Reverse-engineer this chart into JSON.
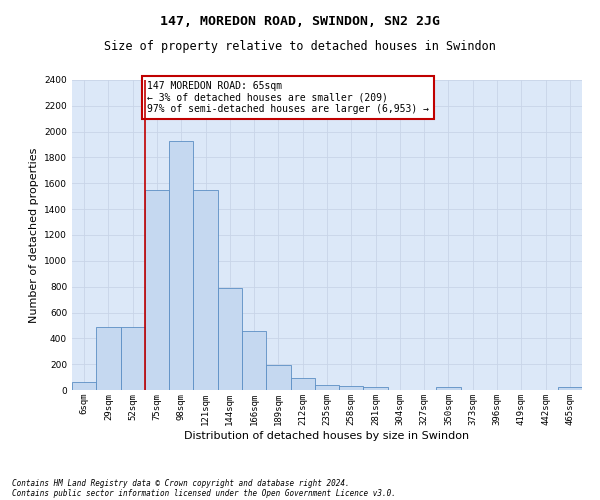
{
  "title": "147, MOREDON ROAD, SWINDON, SN2 2JG",
  "subtitle": "Size of property relative to detached houses in Swindon",
  "xlabel": "Distribution of detached houses by size in Swindon",
  "ylabel": "Number of detached properties",
  "categories": [
    "6sqm",
    "29sqm",
    "52sqm",
    "75sqm",
    "98sqm",
    "121sqm",
    "144sqm",
    "166sqm",
    "189sqm",
    "212sqm",
    "235sqm",
    "258sqm",
    "281sqm",
    "304sqm",
    "327sqm",
    "350sqm",
    "373sqm",
    "396sqm",
    "419sqm",
    "442sqm",
    "465sqm"
  ],
  "values": [
    60,
    490,
    490,
    1545,
    1930,
    1550,
    790,
    460,
    195,
    95,
    40,
    30,
    25,
    0,
    0,
    20,
    0,
    0,
    0,
    0,
    20
  ],
  "bar_color": "#c5d8f0",
  "bar_edge_color": "#5b8ec4",
  "vline_color": "#c00000",
  "annotation_text": "147 MOREDON ROAD: 65sqm\n← 3% of detached houses are smaller (209)\n97% of semi-detached houses are larger (6,953) →",
  "annotation_box_color": "#ffffff",
  "annotation_box_edge_color": "#c00000",
  "ylim": [
    0,
    2400
  ],
  "yticks": [
    0,
    200,
    400,
    600,
    800,
    1000,
    1200,
    1400,
    1600,
    1800,
    2000,
    2200,
    2400
  ],
  "grid_color": "#c8d4e8",
  "bg_color": "#dce8f8",
  "footer_line1": "Contains HM Land Registry data © Crown copyright and database right 2024.",
  "footer_line2": "Contains public sector information licensed under the Open Government Licence v3.0.",
  "title_fontsize": 9.5,
  "subtitle_fontsize": 8.5,
  "tick_fontsize": 6.5,
  "ylabel_fontsize": 8,
  "xlabel_fontsize": 8,
  "annotation_fontsize": 7,
  "footer_fontsize": 5.5
}
